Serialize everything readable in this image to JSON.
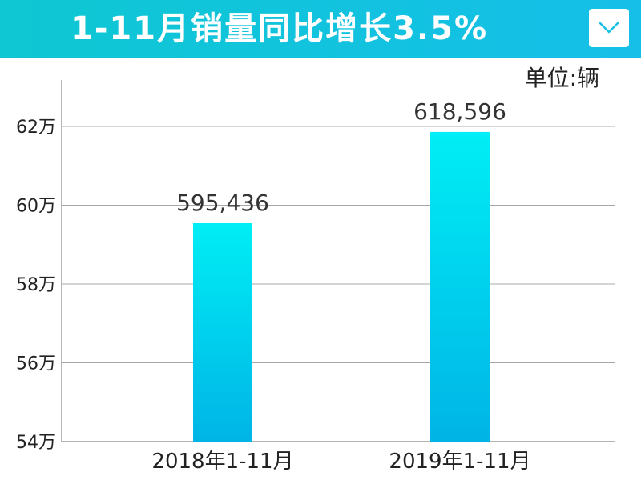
{
  "header": {
    "title": "1-11月销量同比增长3.5%",
    "dropdown_icon": "chevron-down-icon"
  },
  "unit_label": "单位:辆",
  "colors": {
    "header": "#12c2e0",
    "bar_top": "#00eef5",
    "bar_bottom": "#00b4e6",
    "grid": "#a8a8a8"
  },
  "chart_data": {
    "type": "bar",
    "categories": [
      "2018年1-11月",
      "2019年1-11月"
    ],
    "values": [
      595436,
      618596
    ],
    "value_labels": [
      "595,436",
      "618,596"
    ],
    "title": "1-11月销量同比增长3.5%",
    "xlabel": "",
    "ylabel": "",
    "unit": "单位:辆",
    "ylim": [
      540000,
      630000
    ],
    "yticks": [
      540000,
      560000,
      580000,
      600000,
      620000
    ],
    "ytick_labels": [
      "54万",
      "56万",
      "58万",
      "60万",
      "62万"
    ],
    "grid": true,
    "legend": "none"
  }
}
